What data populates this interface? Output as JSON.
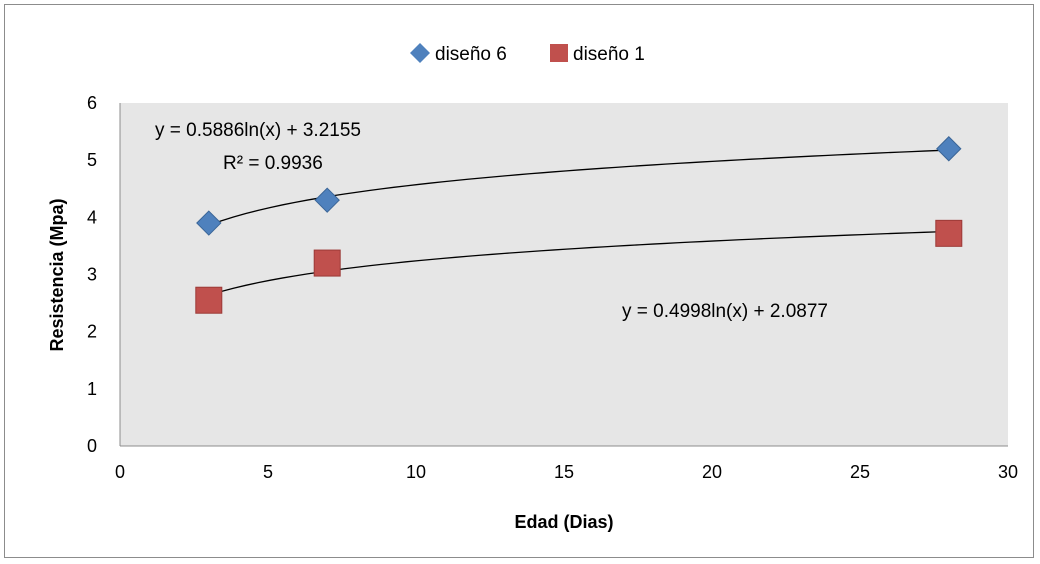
{
  "chart_data": {
    "type": "scatter",
    "title": "",
    "xlabel": "Edad (Dias)",
    "ylabel": "Resistencia (Mpa)",
    "xlim": [
      0,
      30
    ],
    "ylim": [
      0,
      6
    ],
    "xticks": [
      "0",
      "5",
      "10",
      "15",
      "20",
      "25",
      "30"
    ],
    "yticks": [
      "0",
      "1",
      "2",
      "3",
      "4",
      "5",
      "6"
    ],
    "grid": false,
    "legend_position": "top",
    "plot_background": "#e6e6e6",
    "series": [
      {
        "name": "diseño 6",
        "marker": "diamond",
        "color": "#4f81bd",
        "x": [
          3,
          7,
          28
        ],
        "y": [
          3.9,
          4.3,
          5.2
        ],
        "trendline": {
          "type": "logarithmic",
          "a": 0.5886,
          "b": 3.2155,
          "equation": "y = 0.5886ln(x) + 3.2155",
          "r2": "R² = 0.9936"
        }
      },
      {
        "name": "diseño 1",
        "marker": "square",
        "color": "#c0504d",
        "x": [
          3,
          7,
          28
        ],
        "y": [
          2.55,
          3.2,
          3.72
        ],
        "trendline": {
          "type": "logarithmic",
          "a": 0.4998,
          "b": 2.0877,
          "equation": "y = 0.4998ln(x) + 2.0877",
          "r2": ""
        }
      }
    ]
  }
}
